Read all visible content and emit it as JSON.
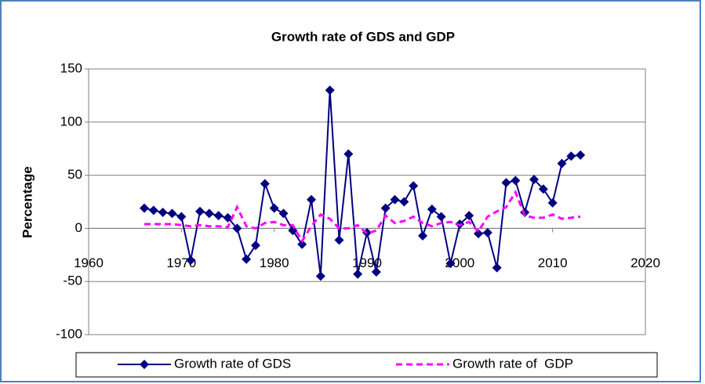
{
  "chart_data": {
    "type": "line",
    "title": "Growth rate of GDS and GDP",
    "y_label": "Percentage",
    "x": [
      1966,
      1967,
      1968,
      1969,
      1970,
      1971,
      1972,
      1973,
      1974,
      1975,
      1976,
      1977,
      1978,
      1979,
      1980,
      1981,
      1982,
      1983,
      1984,
      1985,
      1986,
      1987,
      1988,
      1989,
      1990,
      1991,
      1992,
      1993,
      1994,
      1995,
      1996,
      1997,
      1998,
      1999,
      2000,
      2001,
      2002,
      2003,
      2004,
      2005,
      2006,
      2007,
      2008,
      2009,
      2010,
      2011,
      2012,
      2013
    ],
    "series": [
      {
        "name": "Growth rate of GDS",
        "color": "#000080",
        "marker": "diamond",
        "values": [
          19,
          17,
          15,
          14,
          11,
          -30,
          16,
          14,
          12,
          10,
          0,
          -29,
          -16,
          42,
          19,
          14,
          -2,
          -15,
          27,
          -45,
          130,
          -11,
          70,
          -43,
          -4,
          -41,
          19,
          27,
          25,
          40,
          -7,
          18,
          11,
          -33,
          4,
          12,
          -5,
          -4,
          -37,
          43,
          45,
          15,
          46,
          37,
          24,
          61,
          68,
          69
        ]
      },
      {
        "name": "Growth rate of  GDP",
        "color": "#ff00ff",
        "dashed": true,
        "values": [
          4,
          4,
          4,
          4,
          3,
          2,
          3,
          2,
          2,
          1,
          20,
          2,
          0,
          5,
          6,
          3,
          3,
          -12,
          2,
          13,
          9,
          0,
          0,
          3,
          -5,
          -2,
          12,
          5,
          7,
          11,
          5,
          2,
          5,
          6,
          3,
          6,
          -3,
          11,
          16,
          20,
          34,
          12,
          10,
          10,
          13,
          9,
          10,
          11
        ]
      }
    ],
    "xlim": [
      1960,
      2020
    ],
    "xticks": [
      1960,
      1970,
      1980,
      1990,
      2000,
      2010,
      2020
    ],
    "ylim": [
      -100,
      150
    ],
    "yticks": [
      -100,
      -50,
      0,
      50,
      100,
      150
    ],
    "grid": true,
    "legend": "bottom"
  }
}
